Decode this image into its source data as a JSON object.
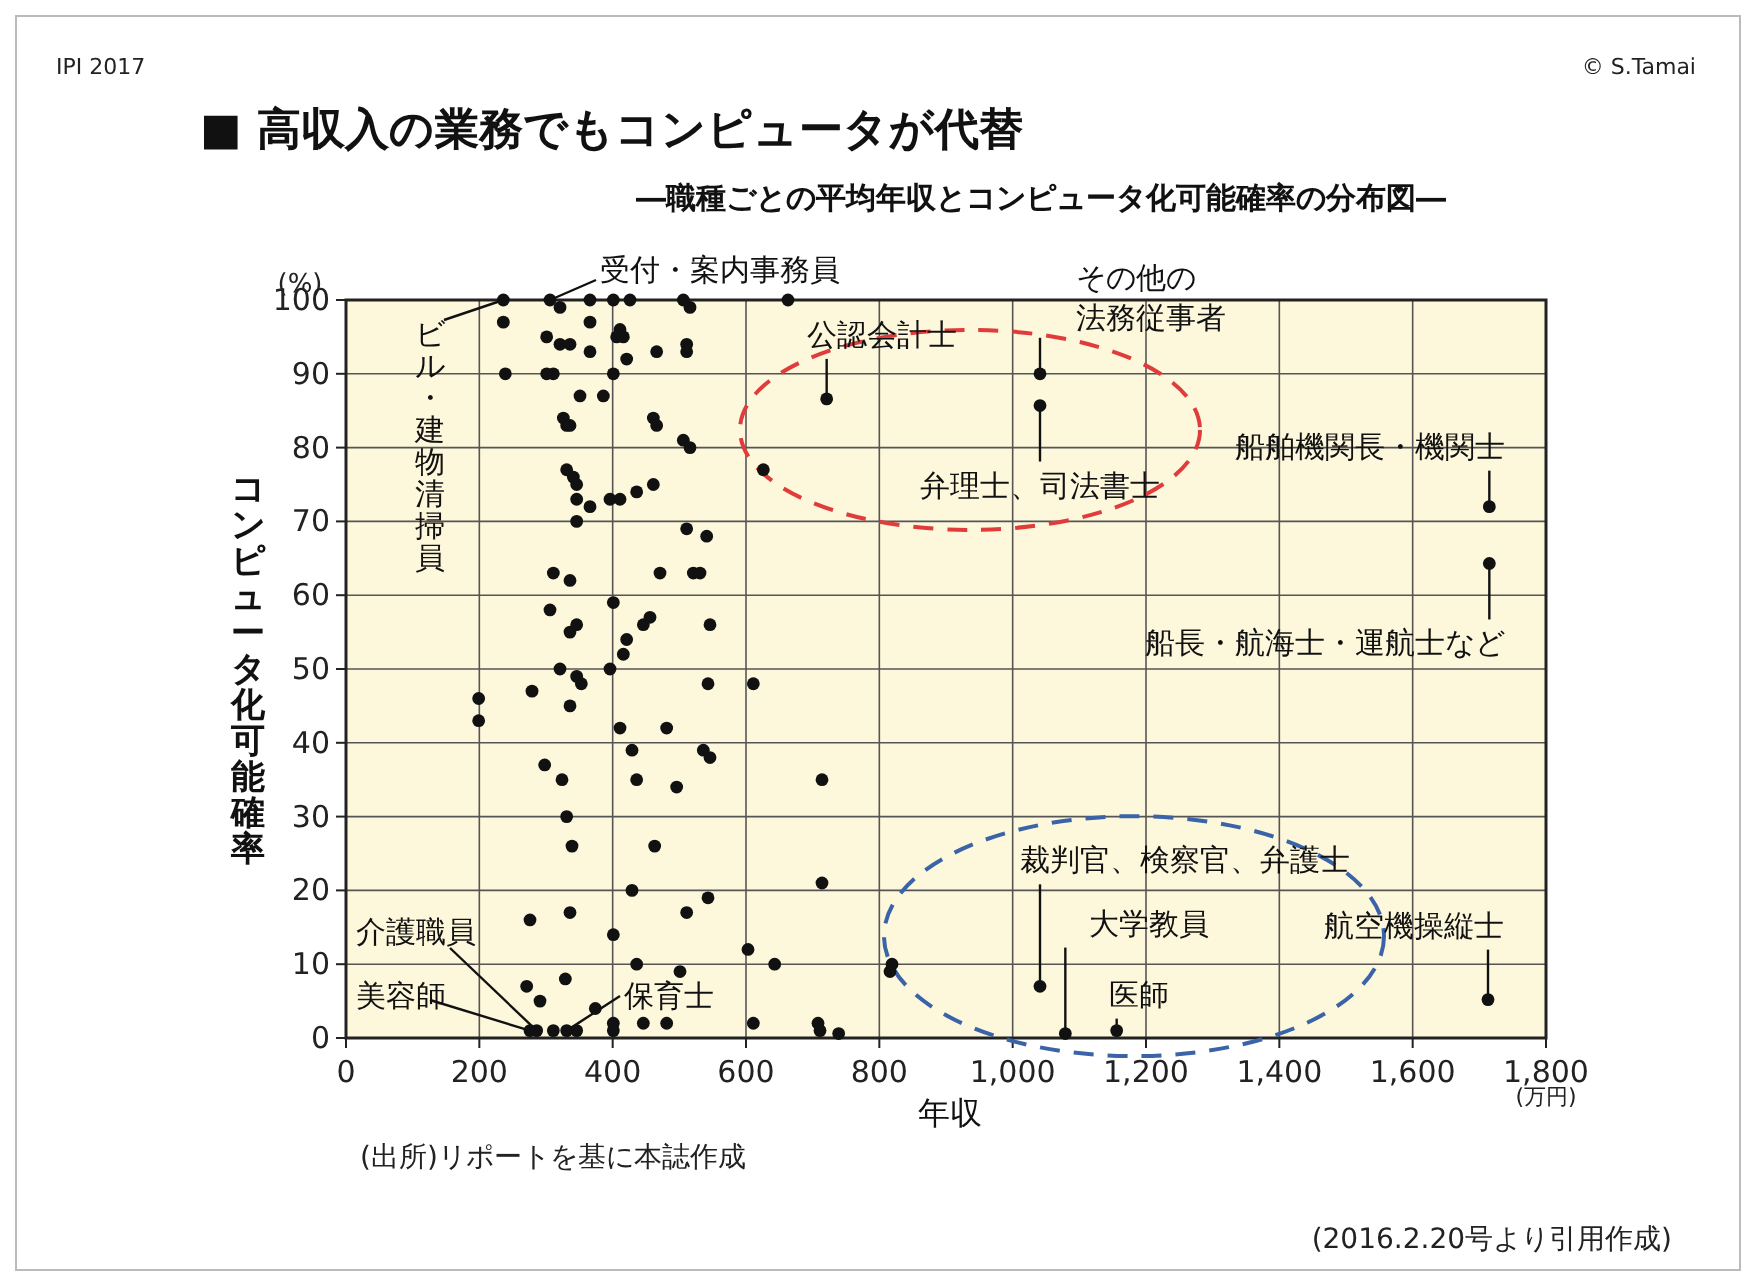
{
  "chart_data": {
    "type": "scatter",
    "title": "■ 高収入の業務でもコンピュータが代替",
    "subtitle": "―職種ごとの平均年収とコンピュータ化可能確率の分布図―",
    "xlabel": "年収",
    "ylabel": "コンピュータ化可能確率",
    "xlim": [
      0,
      1800
    ],
    "ylim": [
      0,
      100
    ],
    "xticks": [
      0,
      200,
      400,
      600,
      800,
      {
        "value": 1000,
        "label": "1,000"
      },
      {
        "value": 1200,
        "label": "1,200"
      },
      {
        "value": 1400,
        "label": "1,400"
      },
      {
        "value": 1600,
        "label": "1,600"
      },
      {
        "value": 1800,
        "label": "1,800"
      }
    ],
    "yticks": [
      0,
      10,
      20,
      30,
      40,
      50,
      60,
      70,
      80,
      90,
      100
    ],
    "grid": true,
    "marker": "circle",
    "series": [
      {
        "color": "#111111",
        "x": [
          236,
          236,
          239,
          306,
          321,
          366,
          401,
          426,
          506,
          516,
          301,
          321,
          336,
          366,
          366,
          411,
          416,
          406,
          466,
          511,
          511,
          421,
          301,
          311,
          401,
          351,
          386,
          326,
          331,
          336,
          461,
          466,
          506,
          516,
          626,
          331,
          341,
          346,
          461,
          436,
          346,
          366,
          396,
          411,
          346,
          511,
          541,
          311,
          336,
          471,
          521,
          531,
          401,
          306,
          336,
          346,
          446,
          456,
          546,
          421,
          416,
          321,
          396,
          346,
          353,
          199,
          199,
          279,
          336,
          543,
          611,
          411,
          481,
          429,
          536,
          546,
          298,
          324,
          436,
          496,
          331,
          339,
          463,
          429,
          543,
          276,
          336,
          511,
          401,
          436,
          501,
          603,
          643,
          271,
          291,
          329,
          374,
          276,
          286,
          311,
          331,
          346,
          401,
          401,
          446,
          481,
          611,
          714,
          714,
          819,
          816,
          1041,
          1079,
          1156,
          708,
          711,
          739,
          663,
          721,
          1041,
          1041,
          1715,
          1715,
          1713
        ],
        "values": [
          100,
          97,
          90,
          100,
          99,
          100,
          100,
          100,
          100,
          99,
          95,
          94,
          94,
          97,
          93,
          96,
          95,
          95,
          93,
          94,
          93,
          92,
          90,
          90,
          90,
          87,
          87,
          84,
          83,
          83,
          84,
          83,
          81,
          80,
          77,
          77,
          76,
          75,
          75,
          74,
          73,
          72,
          73,
          73,
          70,
          69,
          68,
          63,
          62,
          63,
          63,
          63,
          59,
          58,
          55,
          56,
          56,
          57,
          56,
          54,
          52,
          50,
          50,
          49,
          48,
          46,
          43,
          47,
          45,
          48,
          48,
          42,
          42,
          39,
          39,
          38,
          37,
          35,
          35,
          34,
          30,
          26,
          26,
          20,
          19,
          16,
          17,
          17,
          14,
          10,
          9,
          12,
          10,
          7,
          5,
          8,
          4,
          1,
          1,
          1,
          1,
          1,
          2,
          1,
          2,
          2,
          2,
          35,
          21,
          10,
          9,
          7,
          0.6,
          1,
          2,
          1,
          0.6,
          100,
          86.6,
          90,
          85.7,
          72,
          64.3,
          5.2
        ]
      }
    ],
    "annotations": [
      {
        "text": "ビル・建物清掃員",
        "x": 236,
        "y": 100
      },
      {
        "text": "受付・案内事務員",
        "x": 306,
        "y": 100
      },
      {
        "text": "公認会計士",
        "x": 721,
        "y": 86.6
      },
      {
        "text": "その他の法務従事者",
        "x": 1041,
        "y": 90
      },
      {
        "text": "弁理士、司法書士",
        "x": 1041,
        "y": 85.7
      },
      {
        "text": "船舶機関長・機関士",
        "x": 1715,
        "y": 72
      },
      {
        "text": "船長・航海士・運航士など",
        "x": 1715,
        "y": 64.3
      },
      {
        "text": "裁判官、検察官、弁護士",
        "x": 1041,
        "y": 7
      },
      {
        "text": "大学教員",
        "x": 1079,
        "y": 0.6
      },
      {
        "text": "医師",
        "x": 1156,
        "y": 1
      },
      {
        "text": "航空機操縦士",
        "x": 1713,
        "y": 5.2
      },
      {
        "text": "介護職員",
        "x": 286,
        "y": 1
      },
      {
        "text": "美容師",
        "x": 276,
        "y": 1
      },
      {
        "text": "保育士",
        "x": 331,
        "y": 1
      },
      "(%)",
      "(万円)",
      "IPI 2017",
      "© S.Tamai",
      "(出所)リポートを基に本誌作成",
      "(2016.2.20号より引用作成)"
    ]
  }
}
